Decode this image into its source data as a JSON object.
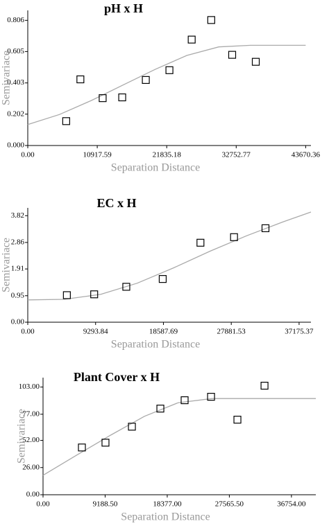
{
  "chart_data": [
    {
      "type": "scatter",
      "title": "pH x H",
      "xlabel": "Separation Distance",
      "ylabel": "Semivariace",
      "xlim": [
        0,
        44500
      ],
      "ylim": [
        0,
        0.87
      ],
      "xticks": [
        {
          "value": 0,
          "label": "0.00"
        },
        10917.59,
        21835.18,
        32752.77,
        43670.36
      ],
      "yticks": [
        {
          "value": 0,
          "label": "0.000"
        },
        0.202,
        0.403,
        0.605,
        0.806
      ],
      "points": {
        "color": "#000000",
        "x": [
          6040,
          8270,
          11770,
          14840,
          18550,
          22260,
          25760,
          28830,
          32120,
          35830
        ],
        "y": [
          0.157,
          0.426,
          0.305,
          0.31,
          0.422,
          0.485,
          0.682,
          0.808,
          0.584,
          0.539
        ]
      },
      "curve": {
        "color": "#aaaaaa",
        "x": [
          0,
          5000,
          10000,
          15000,
          20000,
          25000,
          30000,
          35000,
          43670.36
        ],
        "y": [
          0.135,
          0.2,
          0.29,
          0.39,
          0.49,
          0.58,
          0.635,
          0.645,
          0.645
        ]
      }
    },
    {
      "type": "scatter",
      "title": "EC x H",
      "xlabel": "Separation Distance",
      "ylabel": "Semivariace",
      "xlim": [
        0,
        38800
      ],
      "ylim": [
        0,
        4.1
      ],
      "xticks": [
        {
          "value": 0,
          "label": "0.00"
        },
        9293.84,
        18587.69,
        27881.53,
        37175.37
      ],
      "yticks": [
        {
          "value": 0,
          "label": "0.00"
        },
        0.95,
        1.91,
        2.86,
        3.82
      ],
      "points": {
        "color": "#000000",
        "x": [
          5360,
          9100,
          13500,
          18490,
          23660,
          28260,
          32570
        ],
        "y": [
          0.97,
          1.0,
          1.27,
          1.55,
          2.85,
          3.05,
          3.37
        ]
      },
      "curve": {
        "color": "#aaaaaa",
        "x": [
          0,
          5000,
          10000,
          15000,
          20000,
          25000,
          30000,
          35000,
          38800
        ],
        "y": [
          0.8,
          0.82,
          1.0,
          1.4,
          1.95,
          2.55,
          3.1,
          3.6,
          3.95
        ]
      }
    },
    {
      "type": "scatter",
      "title": "Plant Cover x H",
      "xlabel": "Separation Distance",
      "ylabel": "Semivariace",
      "xlim": [
        0,
        40360
      ],
      "ylim": [
        0,
        112
      ],
      "xticks": [
        {
          "value": 0,
          "label": "0.00"
        },
        {
          "value": 9188.5,
          "label": "9188.50"
        },
        {
          "value": 18377,
          "label": "18377.00"
        },
        {
          "value": 27565.5,
          "label": "27565.50"
        },
        {
          "value": 36754,
          "label": "36754.00"
        }
      ],
      "yticks": [
        {
          "value": 0,
          "label": "0.00"
        },
        {
          "value": 26,
          "label": "26.00"
        },
        {
          "value": 52,
          "label": "52.00"
        },
        {
          "value": 77,
          "label": "77.00"
        },
        {
          "value": 103,
          "label": "103.00"
        }
      ],
      "points": {
        "color": "#000000",
        "x": [
          5750,
          9240,
          13150,
          17360,
          20950,
          24860,
          28760,
          32770
        ],
        "y": [
          45.2,
          49.8,
          65.1,
          82.4,
          90.4,
          93.7,
          71.8,
          104.3
        ]
      },
      "curve": {
        "color": "#aaaaaa",
        "x": [
          0,
          5000,
          10000,
          15000,
          20000,
          25000,
          30000,
          40360
        ],
        "y": [
          18.6,
          38,
          57,
          75,
          88,
          92,
          92,
          92
        ]
      }
    }
  ]
}
